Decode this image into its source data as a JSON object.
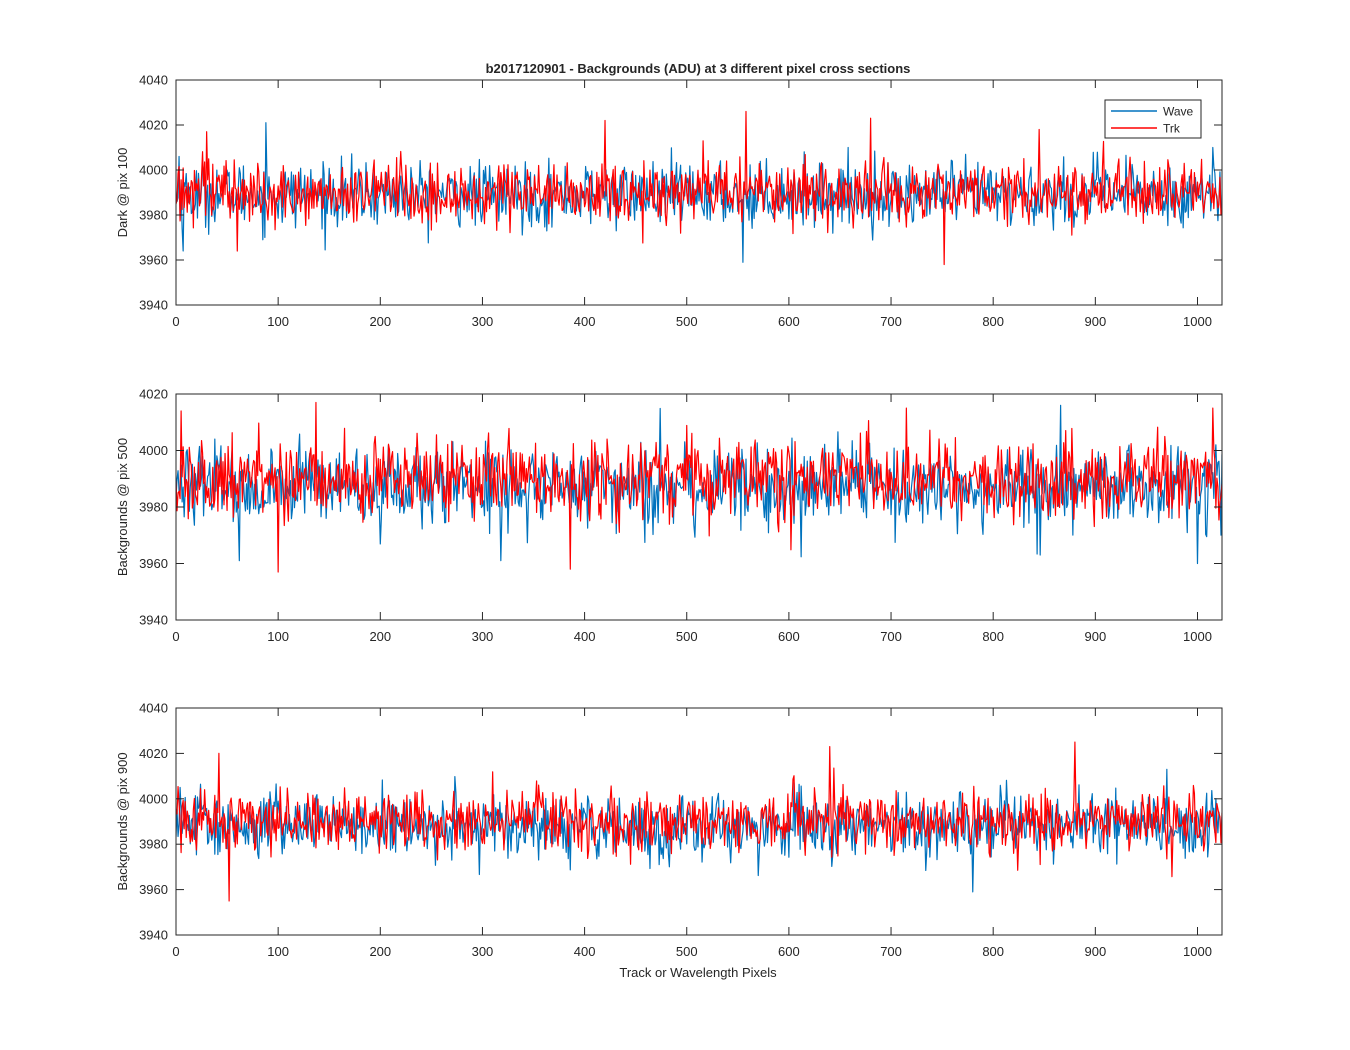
{
  "figure": {
    "title": "b2017120901 - Backgrounds (ADU) at 3 different pixel cross sections",
    "xlabel": "Track or Wavelength Pixels"
  },
  "legend": {
    "placement": "top-right",
    "entries": [
      {
        "label": "Wave",
        "color": "#0072BD"
      },
      {
        "label": "Trk",
        "color": "#FF0000"
      }
    ]
  },
  "chart_data": [
    {
      "type": "line",
      "title": "b2017120901 - Backgrounds (ADU) at 3 different pixel cross sections",
      "xlabel": "",
      "ylabel": "Dark @ pix 100",
      "xlim": [
        0,
        1024
      ],
      "ylim": [
        3940,
        4040
      ],
      "xticks": [
        0,
        100,
        200,
        300,
        400,
        500,
        600,
        700,
        800,
        900,
        1000
      ],
      "yticks": [
        3940,
        3960,
        3980,
        4000,
        4020,
        4040
      ],
      "grid": false,
      "legend": "top-right",
      "series": [
        {
          "name": "Wave",
          "color": "#0072BD",
          "mean": 3989,
          "spread": 7,
          "peaks": [
            [
              3,
              4006
            ],
            [
              7,
              3964
            ],
            [
              88,
              4021
            ],
            [
              555,
              3959
            ],
            [
              1015,
              4010
            ]
          ]
        },
        {
          "name": "Trk",
          "color": "#FF0000",
          "mean": 3990,
          "spread": 7,
          "peaks": [
            [
              30,
              4017
            ],
            [
              60,
              3964
            ],
            [
              420,
              4022
            ],
            [
              558,
              4026
            ],
            [
              680,
              4023
            ],
            [
              752,
              3958
            ],
            [
              845,
              4018
            ]
          ]
        }
      ]
    },
    {
      "type": "line",
      "xlabel": "",
      "ylabel": "Backgrounds @ pix 500",
      "xlim": [
        0,
        1024
      ],
      "ylim": [
        3940,
        4020
      ],
      "xticks": [
        0,
        100,
        200,
        300,
        400,
        500,
        600,
        700,
        800,
        900,
        1000
      ],
      "yticks": [
        3940,
        3960,
        3980,
        4000,
        4020
      ],
      "grid": false,
      "series": [
        {
          "name": "Wave",
          "color": "#0072BD",
          "mean": 3987,
          "spread": 7,
          "peaks": [
            [
              62,
              3961
            ],
            [
              318,
              3961
            ],
            [
              846,
              3963
            ],
            [
              866,
              4016
            ],
            [
              1000,
              3960
            ]
          ]
        },
        {
          "name": "Trk",
          "color": "#FF0000",
          "mean": 3990,
          "spread": 7,
          "peaks": [
            [
              5,
              4014
            ],
            [
              100,
              3957
            ],
            [
              137,
              4017
            ],
            [
              386,
              3958
            ],
            [
              1015,
              4015
            ]
          ]
        }
      ]
    },
    {
      "type": "line",
      "xlabel": "Track or Wavelength Pixels",
      "ylabel": "Backgrounds @ pix 900",
      "xlim": [
        0,
        1024
      ],
      "ylim": [
        3940,
        4040
      ],
      "xticks": [
        0,
        100,
        200,
        300,
        400,
        500,
        600,
        700,
        800,
        900,
        1000
      ],
      "yticks": [
        3940,
        3960,
        3980,
        4000,
        4020,
        4040
      ],
      "grid": false,
      "series": [
        {
          "name": "Wave",
          "color": "#0072BD",
          "mean": 3988,
          "spread": 7,
          "peaks": [
            [
              780,
              3959
            ],
            [
              970,
              4013
            ]
          ]
        },
        {
          "name": "Trk",
          "color": "#FF0000",
          "mean": 3990,
          "spread": 7,
          "peaks": [
            [
              42,
              4020
            ],
            [
              52,
              3955
            ],
            [
              640,
              4023
            ],
            [
              880,
              4025
            ]
          ]
        }
      ]
    }
  ]
}
